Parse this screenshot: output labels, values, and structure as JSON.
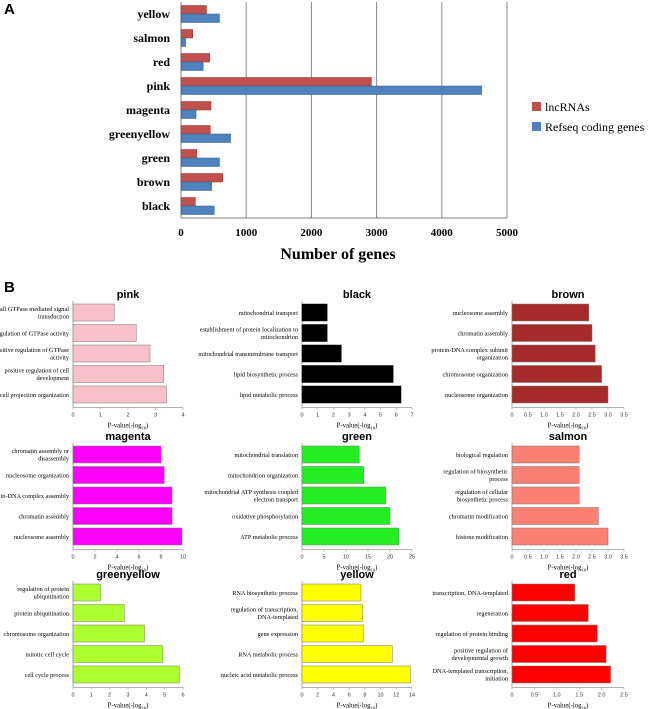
{
  "panel_a": {
    "letter": "A",
    "xlabel": "Number of genes",
    "colors": {
      "lnc": "#c0504d",
      "lnc_edge": "#8c2f2c",
      "ref": "#4f81bd",
      "ref_edge": "#2e5a91",
      "grid": "#8a8a8a"
    }
  },
  "panel_b": {
    "letter": "B",
    "axis_label_prefix": "P-value(-log",
    "axis_label_sub": "10",
    "axis_label_suffix": ")"
  },
  "chart_data": [
    {
      "type": "bar",
      "orientation": "horizontal",
      "title": "",
      "xlabel": "Number of genes",
      "ylabel": "",
      "categories": [
        "yellow",
        "salmon",
        "red",
        "pink",
        "magenta",
        "greenyellow",
        "green",
        "brown",
        "black"
      ],
      "series": [
        {
          "name": "lncRNAs",
          "values": [
            390,
            180,
            440,
            2920,
            460,
            450,
            240,
            640,
            220
          ]
        },
        {
          "name": "Refseq coding genes",
          "values": [
            590,
            70,
            340,
            4610,
            230,
            760,
            590,
            470,
            510
          ]
        }
      ],
      "xlim": [
        0,
        5000
      ],
      "xticks": [
        "0",
        "1000",
        "2000",
        "3000",
        "4000",
        "5000"
      ],
      "legend_position": "right",
      "grid": true
    },
    {
      "type": "bar",
      "orientation": "horizontal",
      "title": "pink",
      "xlabel": "P-value(-log10)",
      "color": "#f8c0cb",
      "categories": [
        "small GTPase mediated signal transduction",
        "regulation of GTPase activity",
        "positive regulation of GTPase activity",
        "positive regulation of cell development",
        "cell projection organization"
      ],
      "values": [
        1.5,
        2.3,
        2.8,
        3.3,
        3.4
      ],
      "xlim": [
        0,
        4
      ],
      "xticks": [
        "0",
        "1",
        "2",
        "3",
        "4"
      ]
    },
    {
      "type": "bar",
      "orientation": "horizontal",
      "title": "black",
      "xlabel": "P-value(-log10)",
      "color": "#000000",
      "categories": [
        "mitochondrial transport",
        "establishment of protein localization to mitochondrion",
        "mitochondrial transmembrane transport",
        "lipid biosynthetic process",
        "lipid metabolic process"
      ],
      "values": [
        1.6,
        1.6,
        2.5,
        5.8,
        6.3
      ],
      "xlim": [
        0,
        7
      ],
      "xticks": [
        "0",
        "1",
        "2",
        "3",
        "4",
        "5",
        "6",
        "7"
      ]
    },
    {
      "type": "bar",
      "orientation": "horizontal",
      "title": "brown",
      "xlabel": "P-value(-log10)",
      "color": "#a52a2a",
      "categories": [
        "nucleosome assembly",
        "chromatin assembly",
        "protein-DNA complex subunit organization",
        "chromosome organization",
        "nucleosome organization"
      ],
      "values": [
        2.4,
        2.5,
        2.6,
        2.8,
        3.0
      ],
      "xlim": [
        0,
        3.5
      ],
      "xticks": [
        "0",
        "0.5",
        "1.0",
        "1.5",
        "2.0",
        "2.5",
        "3.0",
        "3.5"
      ]
    },
    {
      "type": "bar",
      "orientation": "horizontal",
      "title": "magenta",
      "xlabel": "P-value(-log10)",
      "color": "#ff00ff",
      "categories": [
        "chromatin assembly or disassembly",
        "nucleosome organization",
        "protein-DNA complex assembly",
        "chromatin assembly",
        "nucleosome assembly"
      ],
      "values": [
        8.0,
        8.3,
        9.0,
        9.0,
        9.9
      ],
      "xlim": [
        0,
        10
      ],
      "xticks": [
        "0",
        "2",
        "4",
        "6",
        "8",
        "10"
      ]
    },
    {
      "type": "bar",
      "orientation": "horizontal",
      "title": "green",
      "xlabel": "P-value(-log10)",
      "color": "#22ee22",
      "categories": [
        "mitochondrial translation",
        "mitochondrion organization",
        "mitochondrial ATP synthesis coupled electron transport",
        "oxidative phosphorylation",
        "ATP metabolic process"
      ],
      "values": [
        13.0,
        14.0,
        19.0,
        20.0,
        22.0
      ],
      "xlim": [
        0,
        25
      ],
      "xticks": [
        "0",
        "5",
        "10",
        "15",
        "20",
        "25"
      ]
    },
    {
      "type": "bar",
      "orientation": "horizontal",
      "title": "salmon",
      "xlabel": "P-value(-log10)",
      "color": "#fa8072",
      "categories": [
        "biological regulation",
        "regulation of biosynthetic process",
        "regulation of cellular biosynthetic process",
        "chromatin modification",
        "histone modification"
      ],
      "values": [
        2.1,
        2.1,
        2.1,
        2.7,
        3.0
      ],
      "xlim": [
        0,
        3.5
      ],
      "xticks": [
        "0",
        "0.5",
        "1.0",
        "1.5",
        "2.0",
        "2.5",
        "3.0",
        "3.5"
      ]
    },
    {
      "type": "bar",
      "orientation": "horizontal",
      "title": "greenyellow",
      "xlabel": "P-value(-log10)",
      "color": "#adff2f",
      "categories": [
        "regulation of protein ubiquitination",
        "protein ubiquitination",
        "chromosome organization",
        "mitotic cell cycle",
        "cell cycle process"
      ],
      "values": [
        1.5,
        2.8,
        3.9,
        4.9,
        5.8
      ],
      "xlim": [
        0,
        6
      ],
      "xticks": [
        "0",
        "1",
        "2",
        "3",
        "4",
        "5",
        "6"
      ]
    },
    {
      "type": "bar",
      "orientation": "horizontal",
      "title": "yellow",
      "xlabel": "P-value(-log10)",
      "color": "#ffff00",
      "categories": [
        "RNA biosynthetic process",
        "regulation of transcription, DNA-templated",
        "gene expression",
        "RNA metabolic process",
        "nucleic acid metabolic process"
      ],
      "values": [
        7.5,
        7.7,
        7.8,
        11.5,
        13.8
      ],
      "xlim": [
        0,
        14
      ],
      "xticks": [
        "0",
        "2",
        "4",
        "6",
        "8",
        "10",
        "12",
        "14"
      ]
    },
    {
      "type": "bar",
      "orientation": "horizontal",
      "title": "red",
      "xlabel": "P-value(-log10)",
      "color": "#ff0000",
      "categories": [
        "transcription, DNA-templated",
        "regeneration",
        "regulation of protein binding",
        "positive regulation of developmental growth",
        "DNA-templated transcription, initiation"
      ],
      "values": [
        1.4,
        1.7,
        1.9,
        2.1,
        2.2
      ],
      "xlim": [
        0,
        2.5
      ],
      "xticks": [
        "0",
        "0.5",
        "1.0",
        "1.5",
        "2.0",
        "2.5"
      ]
    }
  ]
}
